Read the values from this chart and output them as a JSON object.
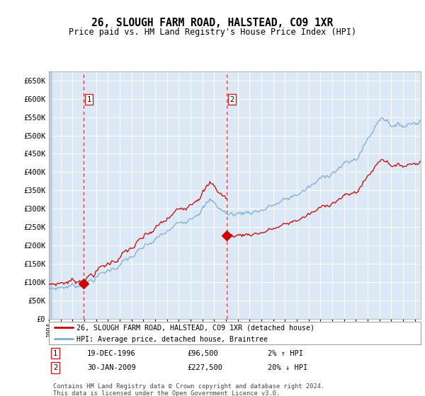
{
  "title": "26, SLOUGH FARM ROAD, HALSTEAD, CO9 1XR",
  "subtitle": "Price paid vs. HM Land Registry's House Price Index (HPI)",
  "sale1_year": 1996.96,
  "sale1_price": 96500,
  "sale1_label": "19-DEC-1996",
  "sale1_hpi_pct": "2% ↑ HPI",
  "sale2_year": 2009.08,
  "sale2_price": 227500,
  "sale2_label": "30-JAN-2009",
  "sale2_hpi_pct": "20% ↓ HPI",
  "legend_red": "26, SLOUGH FARM ROAD, HALSTEAD, CO9 1XR (detached house)",
  "legend_blue": "HPI: Average price, detached house, Braintree",
  "footer": "Contains HM Land Registry data © Crown copyright and database right 2024.\nThis data is licensed under the Open Government Licence v3.0.",
  "ylim_min": 0,
  "ylim_max": 675000,
  "xlim_min": 1994,
  "xlim_max": 2025.5,
  "background_color": "#dce8f5",
  "grid_color": "#ffffff",
  "red_line_color": "#cc0000",
  "blue_line_color": "#7aadd4",
  "hatch_left_color": "#b0b8c8"
}
